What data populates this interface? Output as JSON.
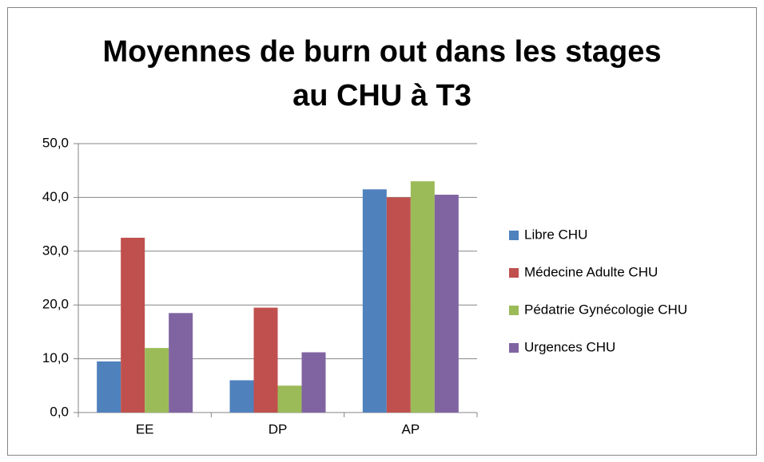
{
  "chart_data": {
    "type": "bar",
    "title": "Moyennes de burn out dans les stages au CHU à T3",
    "categories": [
      "EE",
      "DP",
      "AP"
    ],
    "series": [
      {
        "name": "Libre CHU",
        "color": "#4f81bd",
        "values": [
          9.5,
          6,
          41.5
        ]
      },
      {
        "name": "Médecine Adulte CHU",
        "color": "#c0504d",
        "values": [
          32.5,
          19.5,
          40
        ]
      },
      {
        "name": "Pédatrie Gynécologie CHU",
        "color": "#9bbb59",
        "values": [
          12,
          5,
          43
        ]
      },
      {
        "name": "Urgences CHU",
        "color": "#8064a2",
        "values": [
          18.5,
          11.2,
          40.5
        ]
      }
    ],
    "ylim": [
      0,
      50
    ],
    "yticks": [
      {
        "value": 0,
        "label": "0,0"
      },
      {
        "value": 10,
        "label": "10,0"
      },
      {
        "value": 20,
        "label": "20,0"
      },
      {
        "value": 30,
        "label": "30,0"
      },
      {
        "value": 40,
        "label": "40,0"
      },
      {
        "value": 50,
        "label": "50,0"
      }
    ],
    "grid": true,
    "legend": "right"
  }
}
